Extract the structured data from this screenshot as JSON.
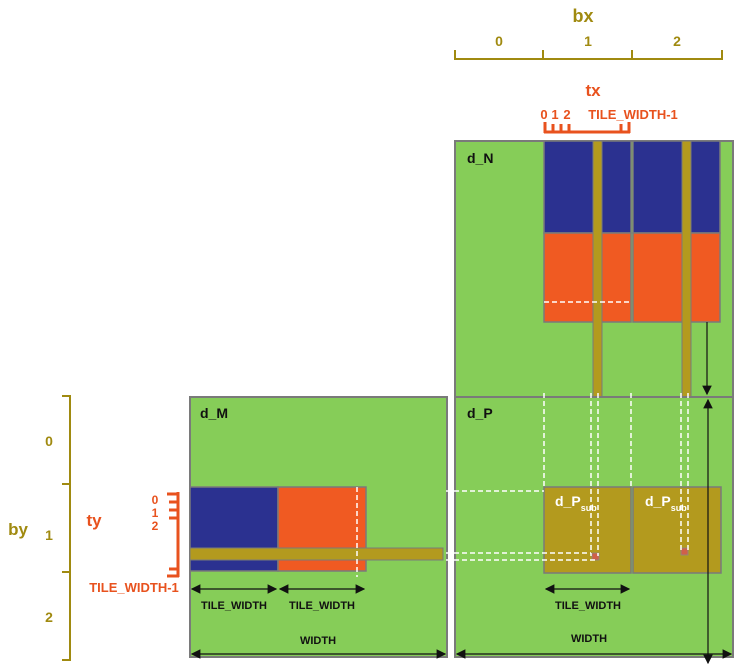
{
  "colors": {
    "matrix_green": "#86cd58",
    "border_gray": "#7a7a7a",
    "tile_blue": "#2b3190",
    "tile_orange": "#f05a22",
    "strip_gold": "#b39a1e",
    "label_gold": "#a08a10",
    "label_orange": "#e8521e"
  },
  "bx": {
    "title": "bx",
    "indices": [
      "0",
      "1",
      "2"
    ]
  },
  "tx": {
    "title": "tx",
    "indices": [
      "0",
      "1",
      "2"
    ],
    "last": "TILE_WIDTH-1"
  },
  "by": {
    "title": "by",
    "indices": [
      "0",
      "1",
      "2"
    ]
  },
  "ty": {
    "title": "ty",
    "indices": [
      "0",
      "1",
      "2"
    ],
    "last": "TILE_WIDTH-1"
  },
  "matrices": {
    "n": "d_N",
    "m": "d_M",
    "p": "d_P"
  },
  "psub": {
    "base": "d_P",
    "subscript": "sub"
  },
  "dimensions": {
    "tile_width": "TILE_WIDTH",
    "width": "WIDTH"
  }
}
